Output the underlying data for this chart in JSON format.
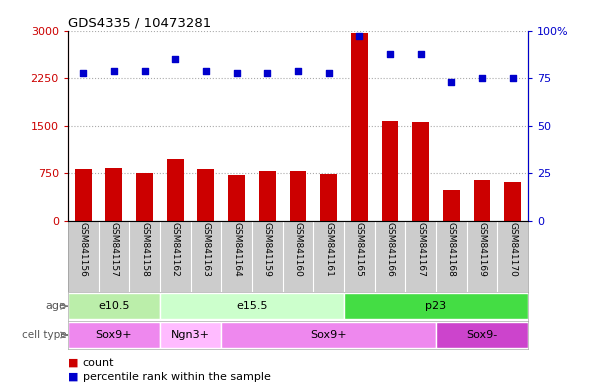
{
  "title": "GDS4335 / 10473281",
  "samples": [
    "GSM841156",
    "GSM841157",
    "GSM841158",
    "GSM841162",
    "GSM841163",
    "GSM841164",
    "GSM841159",
    "GSM841160",
    "GSM841161",
    "GSM841165",
    "GSM841166",
    "GSM841167",
    "GSM841168",
    "GSM841169",
    "GSM841170"
  ],
  "counts": [
    820,
    830,
    760,
    980,
    820,
    730,
    790,
    790,
    740,
    2960,
    1580,
    1560,
    480,
    640,
    620
  ],
  "percentile_ranks": [
    78,
    79,
    79,
    85,
    79,
    78,
    78,
    79,
    78,
    97,
    88,
    88,
    73,
    75,
    75
  ],
  "ylim_left": [
    0,
    3000
  ],
  "ylim_right": [
    0,
    100
  ],
  "yticks_left": [
    0,
    750,
    1500,
    2250,
    3000
  ],
  "yticks_right": [
    0,
    25,
    50,
    75,
    100
  ],
  "bar_color": "#cc0000",
  "dot_color": "#0000cc",
  "age_groups": [
    {
      "label": "e10.5",
      "start": 0,
      "end": 3,
      "color": "#bbeeaa"
    },
    {
      "label": "e15.5",
      "start": 3,
      "end": 9,
      "color": "#ccffcc"
    },
    {
      "label": "p23",
      "start": 9,
      "end": 15,
      "color": "#44dd44"
    }
  ],
  "cell_type_groups": [
    {
      "label": "Sox9+",
      "start": 0,
      "end": 3,
      "color": "#ee88ee"
    },
    {
      "label": "Ngn3+",
      "start": 3,
      "end": 5,
      "color": "#ffbbff"
    },
    {
      "label": "Sox9+",
      "start": 5,
      "end": 12,
      "color": "#ee88ee"
    },
    {
      "label": "Sox9-",
      "start": 12,
      "end": 15,
      "color": "#cc44cc"
    }
  ],
  "bar_color_legend": "#cc0000",
  "dot_color_legend": "#0000cc",
  "grid_dotted_color": "#aaaaaa",
  "sample_label_bg": "#cccccc",
  "sample_label_sep_color": "#ffffff"
}
